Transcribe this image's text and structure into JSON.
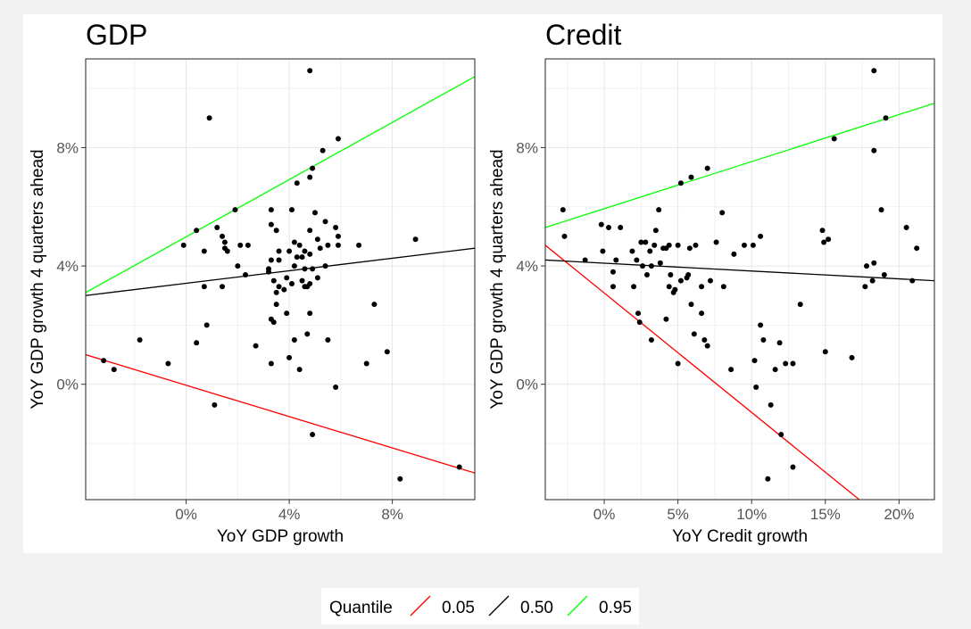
{
  "colors": {
    "q05": "#ff0000",
    "q50": "#000000",
    "q95": "#00ff00",
    "point": "#000000"
  },
  "legend": {
    "title": "Quantile",
    "entries": [
      {
        "label": "0.05",
        "color": "#ff0000"
      },
      {
        "label": "0.50",
        "color": "#000000"
      },
      {
        "label": "0.95",
        "color": "#00ff00"
      }
    ],
    "position": "bottom"
  },
  "chart_data": [
    {
      "type": "scatter",
      "title": "GDP",
      "xlabel": "YoY GDP growth",
      "ylabel": "YoY GDP growth 4 quarters ahead",
      "xlim": [
        -3.9,
        11.2
      ],
      "ylim": [
        -3.9,
        11.0
      ],
      "xticks": [
        0,
        4,
        8
      ],
      "xtick_labels": [
        "0%",
        "4%",
        "8%"
      ],
      "yticks": [
        0,
        4,
        8
      ],
      "ytick_labels": [
        "0%",
        "4%",
        "8%"
      ],
      "grid": true,
      "points": [
        [
          0.9,
          9.0
        ],
        [
          4.8,
          10.6
        ],
        [
          5.9,
          8.3
        ],
        [
          5.3,
          7.9
        ],
        [
          4.9,
          7.3
        ],
        [
          4.8,
          7.0
        ],
        [
          4.3,
          6.8
        ],
        [
          1.9,
          5.9
        ],
        [
          3.3,
          5.9
        ],
        [
          4.1,
          5.9
        ],
        [
          5.0,
          5.8
        ],
        [
          0.4,
          5.2
        ],
        [
          1.2,
          5.3
        ],
        [
          3.3,
          5.4
        ],
        [
          5.4,
          5.5
        ],
        [
          5.8,
          5.3
        ],
        [
          3.5,
          5.2
        ],
        [
          4.8,
          5.2
        ],
        [
          1.4,
          5.0
        ],
        [
          1.5,
          4.8
        ],
        [
          5.9,
          5.0
        ],
        [
          1.5,
          4.6
        ],
        [
          -0.1,
          4.7
        ],
        [
          0.7,
          4.5
        ],
        [
          2.1,
          4.7
        ],
        [
          2.4,
          4.7
        ],
        [
          4.2,
          4.8
        ],
        [
          5.1,
          4.9
        ],
        [
          5.5,
          4.7
        ],
        [
          4.4,
          4.7
        ],
        [
          4.6,
          4.5
        ],
        [
          5.2,
          4.6
        ],
        [
          5.9,
          4.7
        ],
        [
          6.7,
          4.7
        ],
        [
          8.9,
          4.9
        ],
        [
          1.6,
          4.5
        ],
        [
          3.6,
          4.5
        ],
        [
          4.0,
          4.5
        ],
        [
          4.5,
          4.3
        ],
        [
          3.3,
          4.2
        ],
        [
          3.6,
          4.2
        ],
        [
          4.3,
          4.3
        ],
        [
          4.8,
          4.4
        ],
        [
          5.4,
          4.0
        ],
        [
          2.0,
          4.0
        ],
        [
          3.2,
          3.9
        ],
        [
          4.2,
          4.0
        ],
        [
          4.6,
          3.9
        ],
        [
          4.9,
          3.9
        ],
        [
          3.9,
          3.6
        ],
        [
          3.2,
          3.8
        ],
        [
          2.3,
          3.7
        ],
        [
          3.4,
          3.5
        ],
        [
          3.6,
          3.3
        ],
        [
          4.1,
          3.4
        ],
        [
          4.5,
          3.5
        ],
        [
          4.8,
          3.4
        ],
        [
          5.1,
          3.6
        ],
        [
          0.7,
          3.3
        ],
        [
          1.4,
          3.3
        ],
        [
          3.5,
          3.1
        ],
        [
          3.8,
          3.2
        ],
        [
          4.6,
          3.3
        ],
        [
          4.7,
          3.3
        ],
        [
          3.5,
          2.7
        ],
        [
          7.3,
          2.7
        ],
        [
          3.9,
          2.4
        ],
        [
          4.8,
          2.4
        ],
        [
          3.3,
          2.2
        ],
        [
          3.4,
          2.1
        ],
        [
          0.8,
          2.0
        ],
        [
          4.7,
          1.7
        ],
        [
          -1.8,
          1.5
        ],
        [
          0.4,
          1.4
        ],
        [
          4.2,
          1.5
        ],
        [
          5.5,
          1.5
        ],
        [
          2.7,
          1.3
        ],
        [
          7.8,
          1.1
        ],
        [
          4.0,
          0.9
        ],
        [
          -0.7,
          0.7
        ],
        [
          3.3,
          0.7
        ],
        [
          7.0,
          0.7
        ],
        [
          4.4,
          0.5
        ],
        [
          -3.2,
          0.8
        ],
        [
          -2.8,
          0.5
        ],
        [
          5.8,
          -0.1
        ],
        [
          1.1,
          -0.7
        ],
        [
          4.9,
          -1.7
        ],
        [
          10.6,
          -2.8
        ],
        [
          8.3,
          -3.2
        ]
      ],
      "quantile_lines": [
        {
          "quantile": "0.05",
          "x": [
            -3.9,
            11.2
          ],
          "y": [
            1.0,
            -3.0
          ]
        },
        {
          "quantile": "0.50",
          "x": [
            -3.9,
            11.2
          ],
          "y": [
            3.0,
            4.6
          ]
        },
        {
          "quantile": "0.95",
          "x": [
            -3.9,
            11.2
          ],
          "y": [
            3.1,
            10.4
          ]
        }
      ]
    },
    {
      "type": "scatter",
      "title": "Credit",
      "xlabel": "YoY Credit growth",
      "ylabel": "YoY GDP growth 4 quarters ahead",
      "xlim": [
        -4.0,
        22.4
      ],
      "ylim": [
        -3.9,
        11.0
      ],
      "xticks": [
        0,
        5,
        10,
        15,
        20
      ],
      "xtick_labels": [
        "0%",
        "5%",
        "10%",
        "15%",
        "20%"
      ],
      "yticks": [
        0,
        4,
        8
      ],
      "ytick_labels": [
        "0%",
        "4%",
        "8%"
      ],
      "grid": true,
      "points": [
        [
          18.3,
          10.6
        ],
        [
          19.1,
          9.0
        ],
        [
          15.6,
          8.3
        ],
        [
          18.3,
          7.9
        ],
        [
          7.0,
          7.3
        ],
        [
          5.9,
          7.0
        ],
        [
          5.2,
          6.8
        ],
        [
          -2.8,
          5.9
        ],
        [
          3.7,
          5.9
        ],
        [
          8.0,
          5.8
        ],
        [
          18.8,
          5.9
        ],
        [
          -0.2,
          5.4
        ],
        [
          0.3,
          5.3
        ],
        [
          1.1,
          5.3
        ],
        [
          3.5,
          5.2
        ],
        [
          14.8,
          5.2
        ],
        [
          20.5,
          5.3
        ],
        [
          -2.7,
          5.0
        ],
        [
          10.6,
          5.0
        ],
        [
          15.2,
          4.9
        ],
        [
          14.9,
          4.8
        ],
        [
          2.5,
          4.8
        ],
        [
          2.8,
          4.8
        ],
        [
          3.4,
          4.7
        ],
        [
          4.0,
          4.6
        ],
        [
          4.4,
          4.7
        ],
        [
          5.0,
          4.7
        ],
        [
          6.2,
          4.7
        ],
        [
          7.6,
          4.8
        ],
        [
          9.5,
          4.7
        ],
        [
          10.1,
          4.7
        ],
        [
          21.2,
          4.6
        ],
        [
          -0.1,
          4.5
        ],
        [
          1.9,
          4.5
        ],
        [
          3.1,
          4.5
        ],
        [
          4.2,
          4.6
        ],
        [
          5.8,
          4.6
        ],
        [
          8.8,
          4.4
        ],
        [
          -1.3,
          4.2
        ],
        [
          0.8,
          4.2
        ],
        [
          2.2,
          4.2
        ],
        [
          3.8,
          4.1
        ],
        [
          18.3,
          4.1
        ],
        [
          17.8,
          4.0
        ],
        [
          2.6,
          4.0
        ],
        [
          3.2,
          4.0
        ],
        [
          0.6,
          3.8
        ],
        [
          2.9,
          3.7
        ],
        [
          4.5,
          3.7
        ],
        [
          5.7,
          3.7
        ],
        [
          19.0,
          3.7
        ],
        [
          5.2,
          3.5
        ],
        [
          5.6,
          3.6
        ],
        [
          7.2,
          3.5
        ],
        [
          18.2,
          3.5
        ],
        [
          20.9,
          3.5
        ],
        [
          0.6,
          3.3
        ],
        [
          2.0,
          3.3
        ],
        [
          4.4,
          3.3
        ],
        [
          4.8,
          3.2
        ],
        [
          6.6,
          3.3
        ],
        [
          8.1,
          3.3
        ],
        [
          17.7,
          3.3
        ],
        [
          4.7,
          3.1
        ],
        [
          5.9,
          2.7
        ],
        [
          13.3,
          2.7
        ],
        [
          2.3,
          2.4
        ],
        [
          6.6,
          2.4
        ],
        [
          2.4,
          2.1
        ],
        [
          4.2,
          2.2
        ],
        [
          10.6,
          2.0
        ],
        [
          6.1,
          1.7
        ],
        [
          3.2,
          1.5
        ],
        [
          6.8,
          1.5
        ],
        [
          10.8,
          1.5
        ],
        [
          11.9,
          1.4
        ],
        [
          7.0,
          1.3
        ],
        [
          15.0,
          1.1
        ],
        [
          16.8,
          0.9
        ],
        [
          5.0,
          0.7
        ],
        [
          12.3,
          0.7
        ],
        [
          12.8,
          0.7
        ],
        [
          8.6,
          0.5
        ],
        [
          10.2,
          0.8
        ],
        [
          11.6,
          0.5
        ],
        [
          10.3,
          -0.1
        ],
        [
          11.3,
          -0.7
        ],
        [
          12.0,
          -1.7
        ],
        [
          12.8,
          -2.8
        ],
        [
          11.1,
          -3.2
        ]
      ],
      "quantile_lines": [
        {
          "quantile": "0.05",
          "x": [
            -4.0,
            17.3
          ],
          "y": [
            4.7,
            -3.9
          ]
        },
        {
          "quantile": "0.50",
          "x": [
            -4.0,
            22.4
          ],
          "y": [
            4.2,
            3.5
          ]
        },
        {
          "quantile": "0.95",
          "x": [
            -4.0,
            22.4
          ],
          "y": [
            5.3,
            9.5
          ]
        }
      ]
    }
  ]
}
